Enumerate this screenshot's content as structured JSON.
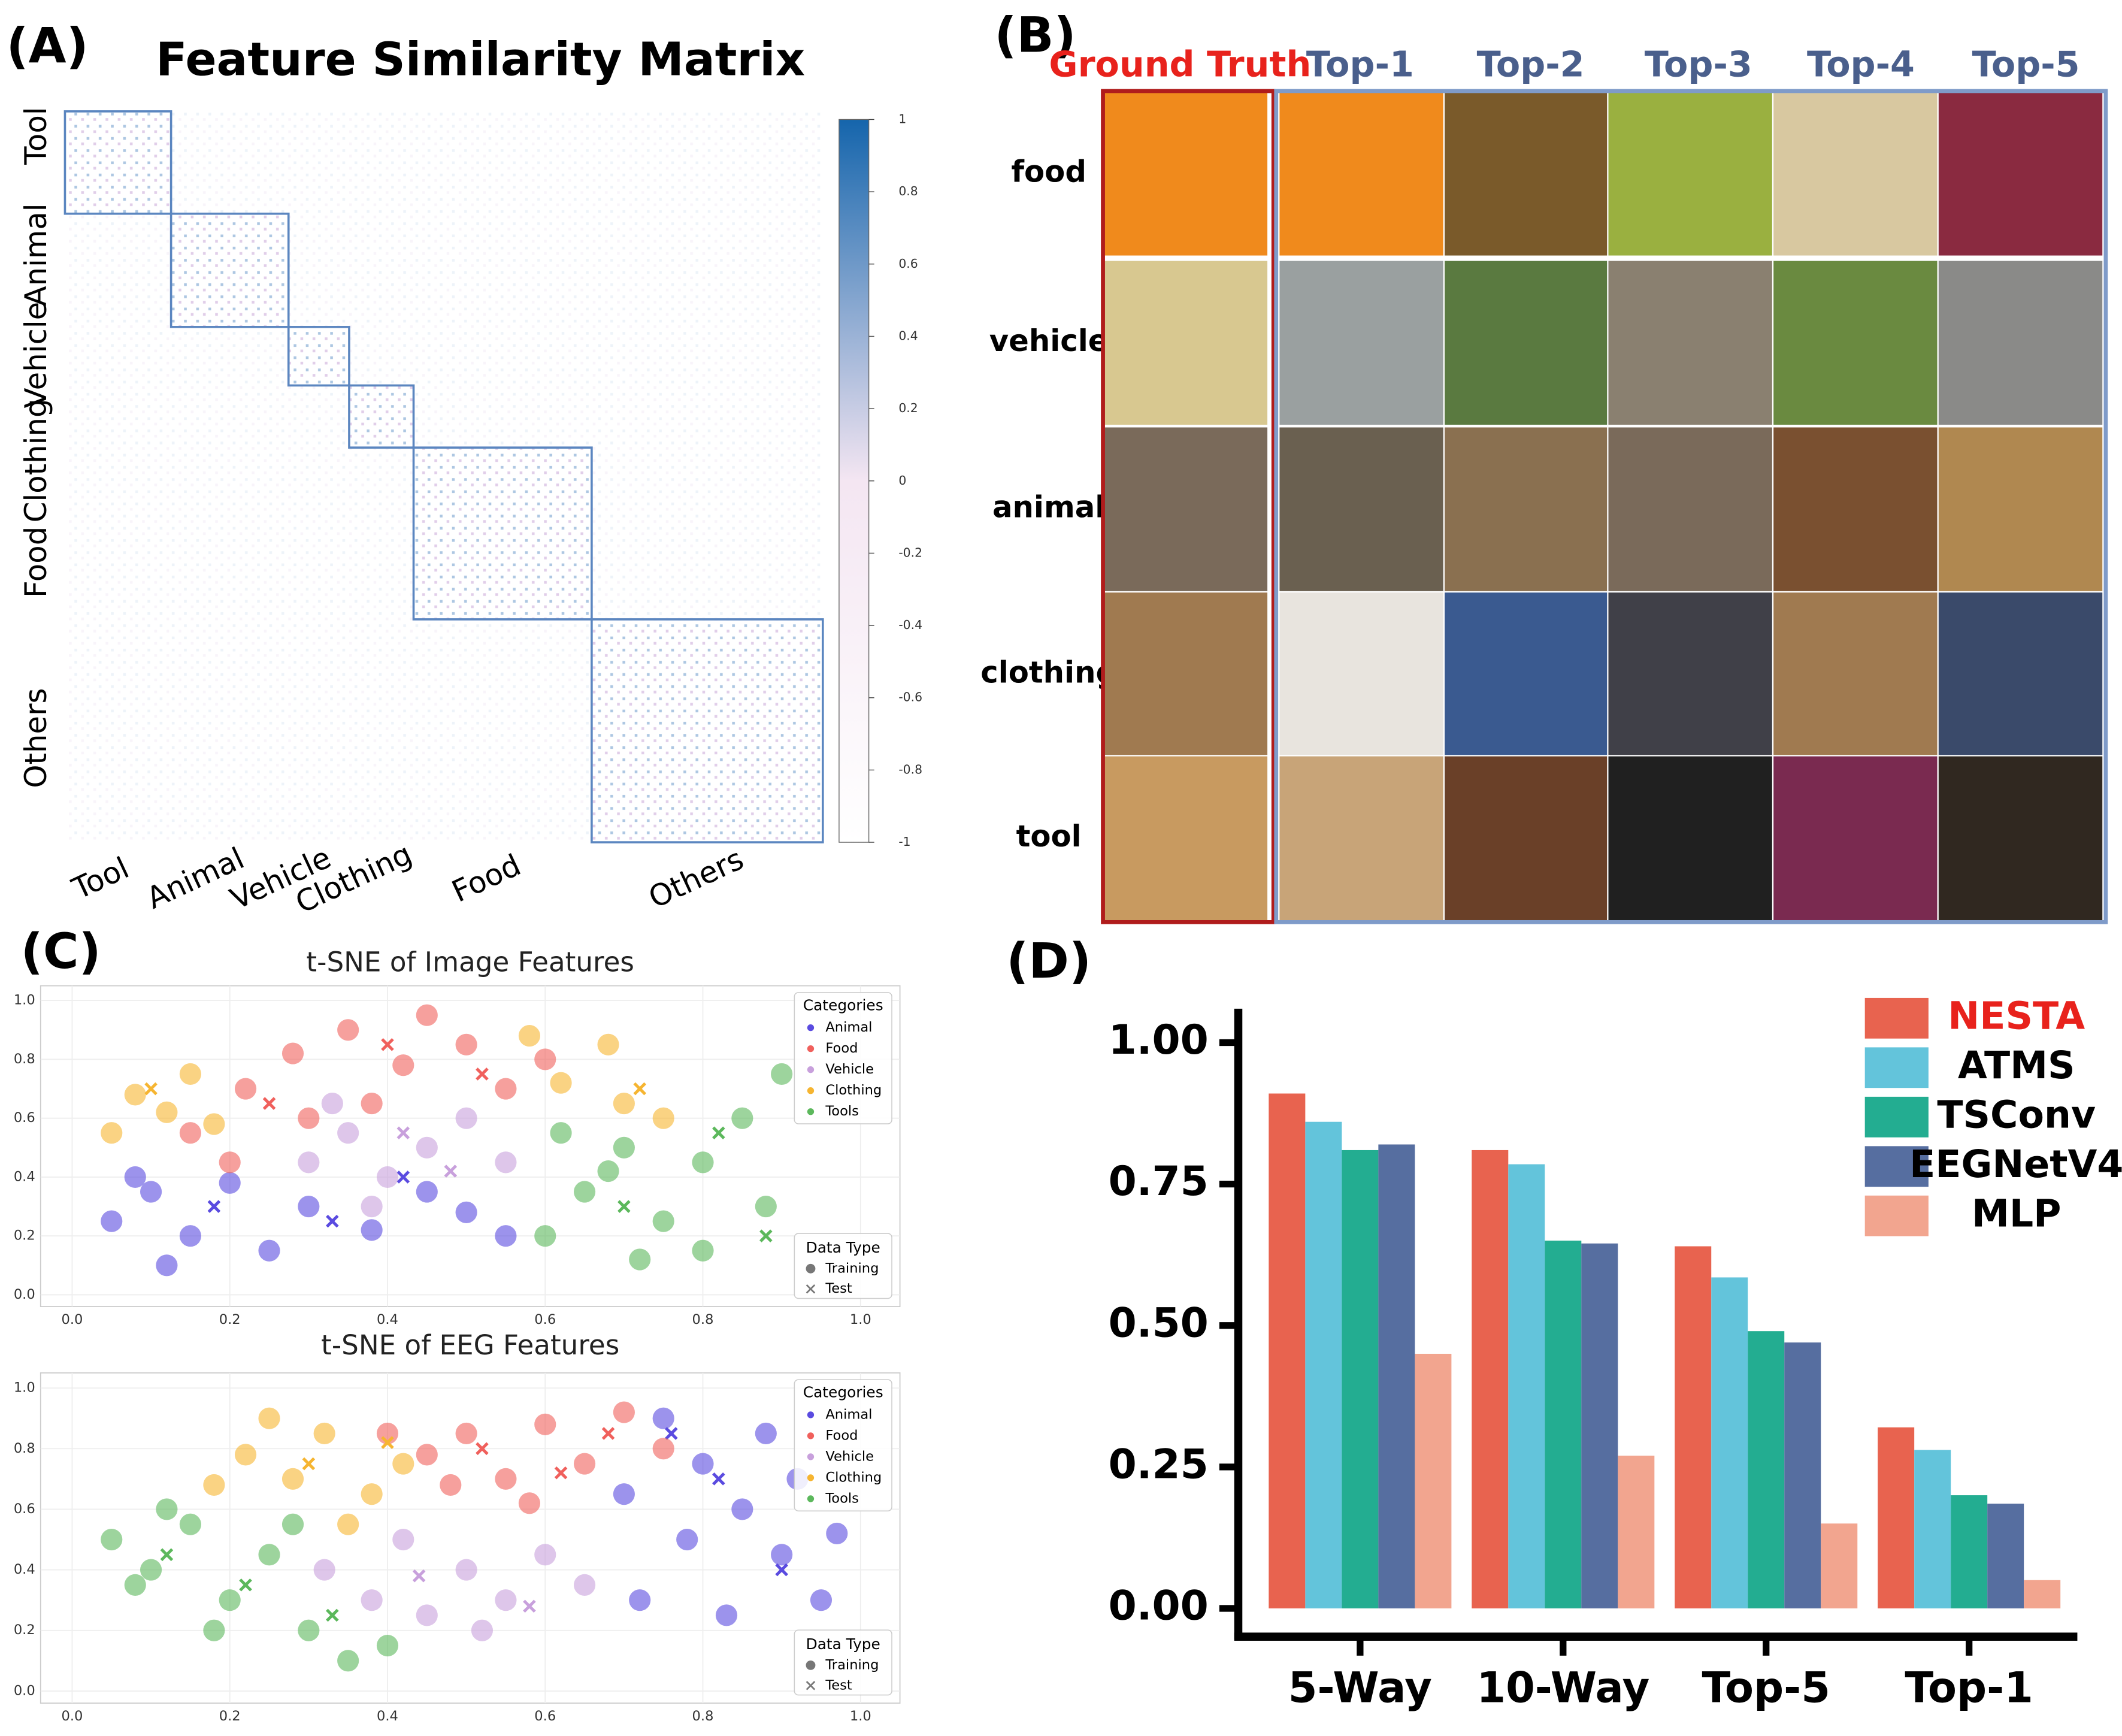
{
  "panel_labels": [
    "(A)",
    "(B)",
    "(C)",
    "(D)"
  ],
  "retrieval_grid": {
    "columns": [
      "Ground Truth",
      "Top-1",
      "Top-2",
      "Top-3",
      "Top-4",
      "Top-5"
    ],
    "rows": [
      "food",
      "vehicle",
      "animal",
      "clothing",
      "tool"
    ]
  },
  "chart_data": [
    {
      "type": "heatmap",
      "title": "Feature Similarity Matrix",
      "categories": [
        "Tool",
        "Animal",
        "Vehicle",
        "Clothing",
        "Food",
        "Others"
      ],
      "block_sizes": [
        28,
        31,
        16,
        17,
        47,
        61
      ],
      "colorbar_lim": [
        -1,
        1
      ],
      "colorbar_ticks": [
        1,
        0.8,
        0.6,
        0.4,
        0.2,
        0,
        -0.2,
        -0.4,
        -0.6,
        -0.8,
        -1
      ],
      "colors": [
        "#ffffff",
        "#f4e6f2",
        "#1565ac"
      ],
      "block_color": "#5b86c0"
    },
    {
      "type": "scatter",
      "title": "t-SNE of Image Features",
      "xlim": [
        -0.04,
        1.05
      ],
      "ylim": [
        -0.04,
        1.05
      ],
      "xticks": [
        {
          "value": 0,
          "label": "0.0"
        },
        0.2,
        0.4,
        0.6,
        0.8,
        {
          "value": 1,
          "label": "1.0"
        }
      ],
      "yticks": [
        {
          "value": 0,
          "label": "0.0"
        },
        0.2,
        0.4,
        0.6,
        0.8,
        {
          "value": 1,
          "label": "1.0"
        }
      ],
      "grid": true,
      "legend_title": "Categories",
      "data_type_legend": {
        "title": "Data Type",
        "items": [
          "Training",
          "Test"
        ]
      },
      "series": [
        {
          "name": "Animal",
          "color": "#5a4be0",
          "x": [
            0.05,
            0.1,
            0.15,
            0.2,
            0.25,
            0.3,
            0.38,
            0.45,
            0.5,
            0.12,
            0.55,
            0.08
          ],
          "y": [
            0.25,
            0.35,
            0.2,
            0.38,
            0.15,
            0.3,
            0.22,
            0.35,
            0.28,
            0.1,
            0.2,
            0.4
          ],
          "test_x": [
            0.18,
            0.33,
            0.42
          ],
          "test_y": [
            0.3,
            0.25,
            0.4
          ]
        },
        {
          "name": "Food",
          "color": "#f0605c",
          "x": [
            0.15,
            0.22,
            0.28,
            0.35,
            0.42,
            0.5,
            0.55,
            0.3,
            0.2,
            0.45,
            0.6,
            0.38
          ],
          "y": [
            0.55,
            0.7,
            0.82,
            0.9,
            0.78,
            0.85,
            0.7,
            0.6,
            0.45,
            0.95,
            0.8,
            0.65
          ],
          "test_x": [
            0.25,
            0.4,
            0.52
          ],
          "test_y": [
            0.65,
            0.85,
            0.75
          ]
        },
        {
          "name": "Vehicle",
          "color": "#c8a0dc",
          "x": [
            0.3,
            0.35,
            0.4,
            0.45,
            0.5,
            0.38,
            0.55,
            0.33
          ],
          "y": [
            0.45,
            0.55,
            0.4,
            0.5,
            0.6,
            0.3,
            0.45,
            0.65
          ],
          "test_x": [
            0.42,
            0.48
          ],
          "test_y": [
            0.55,
            0.42
          ]
        },
        {
          "name": "Clothing",
          "color": "#f6b531",
          "x": [
            0.08,
            0.12,
            0.15,
            0.62,
            0.7,
            0.75,
            0.68,
            0.05,
            0.18,
            0.58
          ],
          "y": [
            0.68,
            0.62,
            0.75,
            0.72,
            0.65,
            0.6,
            0.85,
            0.55,
            0.58,
            0.88
          ],
          "test_x": [
            0.1,
            0.72
          ],
          "test_y": [
            0.7,
            0.7
          ]
        },
        {
          "name": "Tools",
          "color": "#5cb85c",
          "x": [
            0.6,
            0.65,
            0.7,
            0.75,
            0.8,
            0.85,
            0.88,
            0.72,
            0.62,
            0.9,
            0.8,
            0.68
          ],
          "y": [
            0.2,
            0.35,
            0.5,
            0.25,
            0.45,
            0.6,
            0.3,
            0.12,
            0.55,
            0.75,
            0.15,
            0.42
          ],
          "test_x": [
            0.7,
            0.82,
            0.88
          ],
          "test_y": [
            0.3,
            0.55,
            0.2
          ]
        }
      ]
    },
    {
      "type": "scatter",
      "title": "t-SNE of EEG Features",
      "xlim": [
        -0.04,
        1.05
      ],
      "ylim": [
        -0.04,
        1.05
      ],
      "xticks": [
        {
          "value": 0,
          "label": "0.0"
        },
        0.2,
        0.4,
        0.6,
        0.8,
        {
          "value": 1,
          "label": "1.0"
        }
      ],
      "yticks": [
        {
          "value": 0,
          "label": "0.0"
        },
        0.2,
        0.4,
        0.6,
        0.8,
        {
          "value": 1,
          "label": "1.0"
        }
      ],
      "grid": true,
      "legend_title": "Categories",
      "data_type_legend": {
        "title": "Data Type",
        "items": [
          "Training",
          "Test"
        ]
      },
      "series": [
        {
          "name": "Animal",
          "color": "#5a4be0",
          "x": [
            0.75,
            0.8,
            0.85,
            0.9,
            0.95,
            0.88,
            0.78,
            0.92,
            0.72,
            0.97,
            0.83,
            0.7
          ],
          "y": [
            0.9,
            0.75,
            0.6,
            0.45,
            0.3,
            0.85,
            0.5,
            0.7,
            0.3,
            0.52,
            0.25,
            0.65
          ],
          "test_x": [
            0.82,
            0.9,
            0.76
          ],
          "test_y": [
            0.7,
            0.4,
            0.85
          ]
        },
        {
          "name": "Food",
          "color": "#f0605c",
          "x": [
            0.45,
            0.5,
            0.55,
            0.6,
            0.65,
            0.7,
            0.58,
            0.48,
            0.75,
            0.4
          ],
          "y": [
            0.78,
            0.85,
            0.7,
            0.88,
            0.75,
            0.92,
            0.62,
            0.68,
            0.8,
            0.85
          ],
          "test_x": [
            0.52,
            0.62,
            0.68
          ],
          "test_y": [
            0.8,
            0.72,
            0.85
          ]
        },
        {
          "name": "Vehicle",
          "color": "#c8a0dc",
          "x": [
            0.32,
            0.38,
            0.45,
            0.5,
            0.55,
            0.6,
            0.42,
            0.65,
            0.52
          ],
          "y": [
            0.4,
            0.3,
            0.25,
            0.4,
            0.3,
            0.45,
            0.5,
            0.35,
            0.2
          ],
          "test_x": [
            0.44,
            0.58
          ],
          "test_y": [
            0.38,
            0.28
          ]
        },
        {
          "name": "Clothing",
          "color": "#f6b531",
          "x": [
            0.22,
            0.28,
            0.32,
            0.38,
            0.25,
            0.42,
            0.18,
            0.35
          ],
          "y": [
            0.78,
            0.7,
            0.85,
            0.65,
            0.9,
            0.75,
            0.68,
            0.55
          ],
          "test_x": [
            0.3,
            0.4
          ],
          "test_y": [
            0.75,
            0.82
          ]
        },
        {
          "name": "Tools",
          "color": "#5cb85c",
          "x": [
            0.05,
            0.1,
            0.15,
            0.2,
            0.25,
            0.3,
            0.35,
            0.12,
            0.08,
            0.28,
            0.4,
            0.18
          ],
          "y": [
            0.5,
            0.4,
            0.55,
            0.3,
            0.45,
            0.2,
            0.1,
            0.6,
            0.35,
            0.55,
            0.15,
            0.2
          ],
          "test_x": [
            0.12,
            0.22,
            0.33
          ],
          "test_y": [
            0.45,
            0.35,
            0.25
          ]
        }
      ]
    },
    {
      "type": "bar",
      "categories": [
        "5-Way",
        "10-Way",
        "Top-5",
        "Top-1"
      ],
      "ylim": [
        -0.05,
        1.06
      ],
      "yticks": [
        {
          "value": 0,
          "label": "0.00"
        },
        {
          "value": 0.25,
          "label": "0.25"
        },
        {
          "value": 0.5,
          "label": "0.50"
        },
        {
          "value": 0.75,
          "label": "0.75"
        },
        {
          "value": 1,
          "label": "1.00"
        }
      ],
      "series": [
        {
          "name": "NESTA",
          "color": "#e8634f",
          "legend_text_color": "#e8221c",
          "values": [
            0.91,
            0.81,
            0.64,
            0.32
          ]
        },
        {
          "name": "ATMS",
          "color": "#63c4db",
          "legend_text_color": "#000000",
          "values": [
            0.86,
            0.785,
            0.585,
            0.28
          ]
        },
        {
          "name": "TSConv",
          "color": "#23ad91",
          "legend_text_color": "#000000",
          "values": [
            0.81,
            0.65,
            0.49,
            0.2
          ]
        },
        {
          "name": "EEGNetV4",
          "color": "#566ea0",
          "legend_text_color": "#000000",
          "values": [
            0.82,
            0.645,
            0.47,
            0.185
          ]
        },
        {
          "name": "MLP",
          "color": "#f2a58f",
          "legend_text_color": "#000000",
          "values": [
            0.45,
            0.27,
            0.15,
            0.05
          ]
        }
      ]
    }
  ]
}
